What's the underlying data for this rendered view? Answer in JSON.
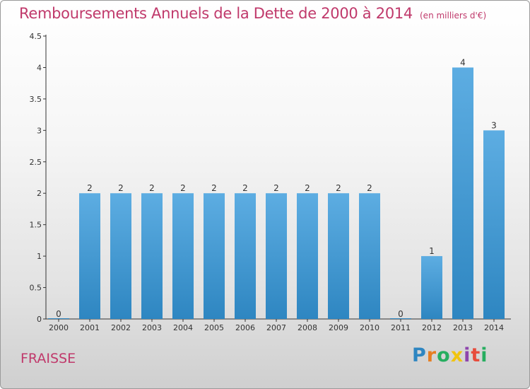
{
  "title": "Remboursements Annuels de la Dette de 2000 à 2014",
  "subtitle": "(en milliers d'€)",
  "commune": "FRAISSE",
  "logo_text": "Proxiti",
  "colors": {
    "bar_light": "#5dade2",
    "bar_dark": "#2e86c1",
    "title": "#c0396b",
    "logo": [
      "#2e86c1",
      "#e67e22",
      "#27ae60",
      "#f1c40f",
      "#8e44ad",
      "#e74c3c",
      "#27ae60"
    ]
  },
  "chart_data": {
    "type": "bar",
    "categories": [
      "2000",
      "2001",
      "2002",
      "2003",
      "2004",
      "2005",
      "2006",
      "2007",
      "2008",
      "2009",
      "2010",
      "2011",
      "2012",
      "2013",
      "2014"
    ],
    "values": [
      0,
      2,
      2,
      2,
      2,
      2,
      2,
      2,
      2,
      2,
      2,
      0,
      1,
      4,
      3
    ],
    "data_labels": [
      "0",
      "2",
      "2",
      "2",
      "2",
      "2",
      "2",
      "2",
      "2",
      "2",
      "2",
      "0",
      "1",
      "4",
      "3"
    ],
    "y_ticks": [
      "0",
      "0.5",
      "1",
      "1.5",
      "2",
      "2.5",
      "3",
      "3.5",
      "4",
      "4.5"
    ],
    "ylim": [
      0,
      4.5
    ],
    "grid": false,
    "xlabel": "",
    "ylabel": ""
  }
}
